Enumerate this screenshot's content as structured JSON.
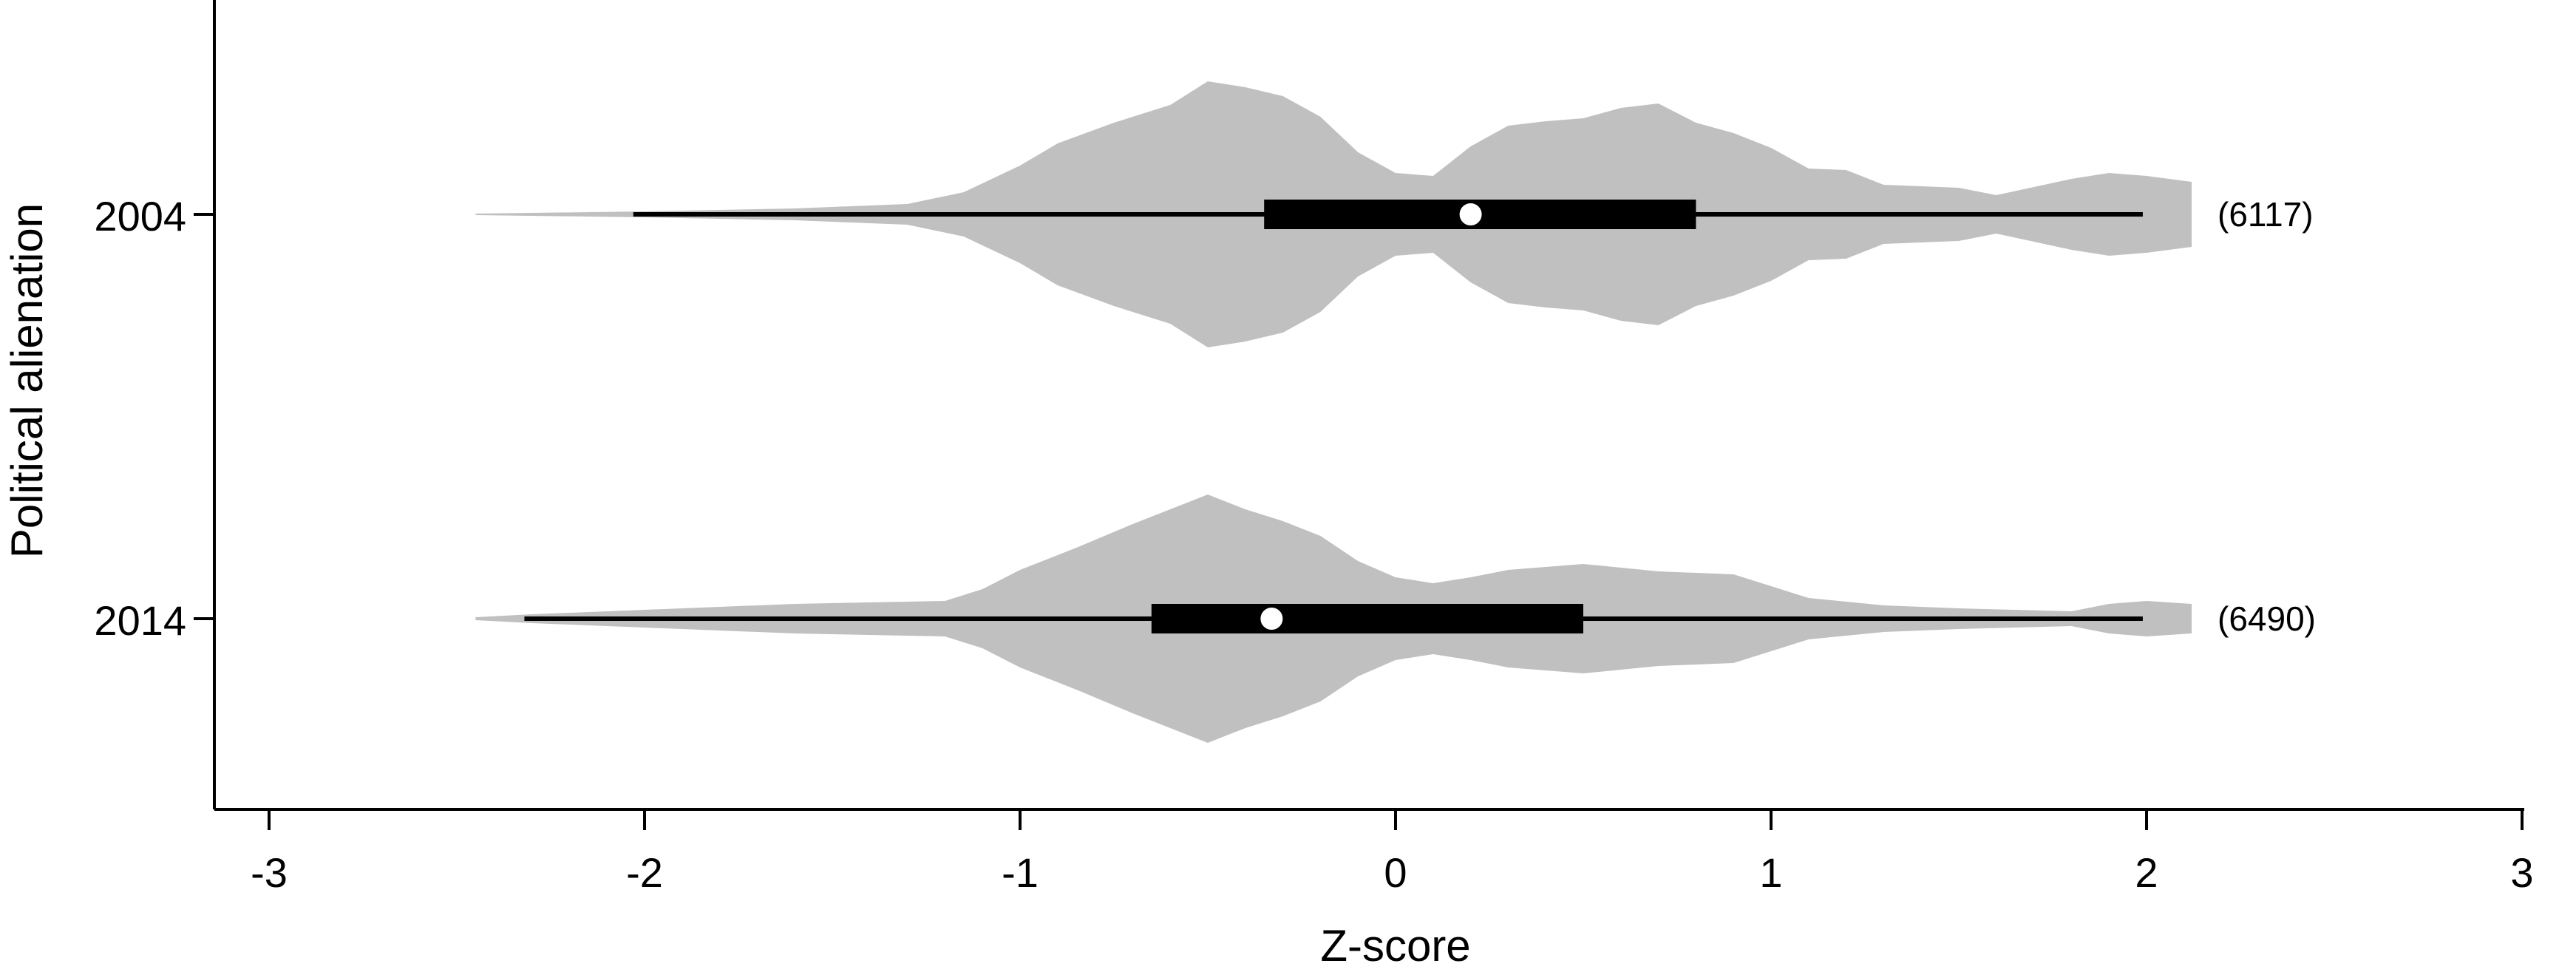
{
  "chart_data": {
    "type": "violin",
    "orientation": "horizontal",
    "xlabel": "Z-score",
    "ylabel": "Political alienation",
    "xlim": [
      -3.2,
      3.0
    ],
    "xticks": [
      -3,
      -2,
      -1,
      0,
      1,
      2,
      3
    ],
    "xtick_labels": [
      "-3",
      "-2",
      "-1",
      "0",
      "1",
      "2",
      "3"
    ],
    "grid": false,
    "legend": "none",
    "colors": {
      "violin": "#c0c0c0",
      "box": "#000000",
      "median": "#ffffff"
    },
    "groups": [
      {
        "label": "2004",
        "n_label": "(6117)",
        "median": 0.2,
        "q1": -0.35,
        "q3": 0.8,
        "whisker_low": -2.03,
        "whisker_high": 1.99,
        "density": {
          "x": [
            -2.45,
            -2.0,
            -1.6,
            -1.3,
            -1.15,
            -1.0,
            -0.9,
            -0.75,
            -0.6,
            -0.5,
            -0.4,
            -0.3,
            -0.2,
            -0.1,
            0.0,
            0.1,
            0.2,
            0.3,
            0.4,
            0.5,
            0.6,
            0.7,
            0.8,
            0.9,
            1.0,
            1.1,
            1.2,
            1.3,
            1.5,
            1.6,
            1.8,
            1.9,
            2.0,
            2.12
          ],
          "half_width": [
            0.005,
            0.02,
            0.04,
            0.07,
            0.15,
            0.33,
            0.48,
            0.62,
            0.74,
            0.9,
            0.86,
            0.8,
            0.66,
            0.42,
            0.28,
            0.26,
            0.46,
            0.6,
            0.63,
            0.65,
            0.72,
            0.75,
            0.62,
            0.55,
            0.45,
            0.31,
            0.3,
            0.2,
            0.18,
            0.13,
            0.24,
            0.28,
            0.26,
            0.22
          ]
        }
      },
      {
        "label": "2014",
        "n_label": "(6490)",
        "median": -0.33,
        "q1": -0.65,
        "q3": 0.5,
        "whisker_low": -2.32,
        "whisker_high": 1.99,
        "density": {
          "x": [
            -2.45,
            -2.3,
            -2.0,
            -1.6,
            -1.2,
            -1.1,
            -1.0,
            -0.85,
            -0.7,
            -0.5,
            -0.4,
            -0.3,
            -0.2,
            -0.1,
            0.0,
            0.1,
            0.2,
            0.3,
            0.5,
            0.7,
            0.9,
            1.0,
            1.1,
            1.3,
            1.5,
            1.8,
            1.9,
            2.0,
            2.12
          ],
          "half_width": [
            0.01,
            0.03,
            0.06,
            0.1,
            0.12,
            0.2,
            0.33,
            0.48,
            0.64,
            0.84,
            0.74,
            0.66,
            0.56,
            0.39,
            0.28,
            0.24,
            0.28,
            0.33,
            0.37,
            0.32,
            0.3,
            0.22,
            0.14,
            0.09,
            0.07,
            0.05,
            0.1,
            0.12,
            0.1
          ]
        }
      }
    ]
  }
}
